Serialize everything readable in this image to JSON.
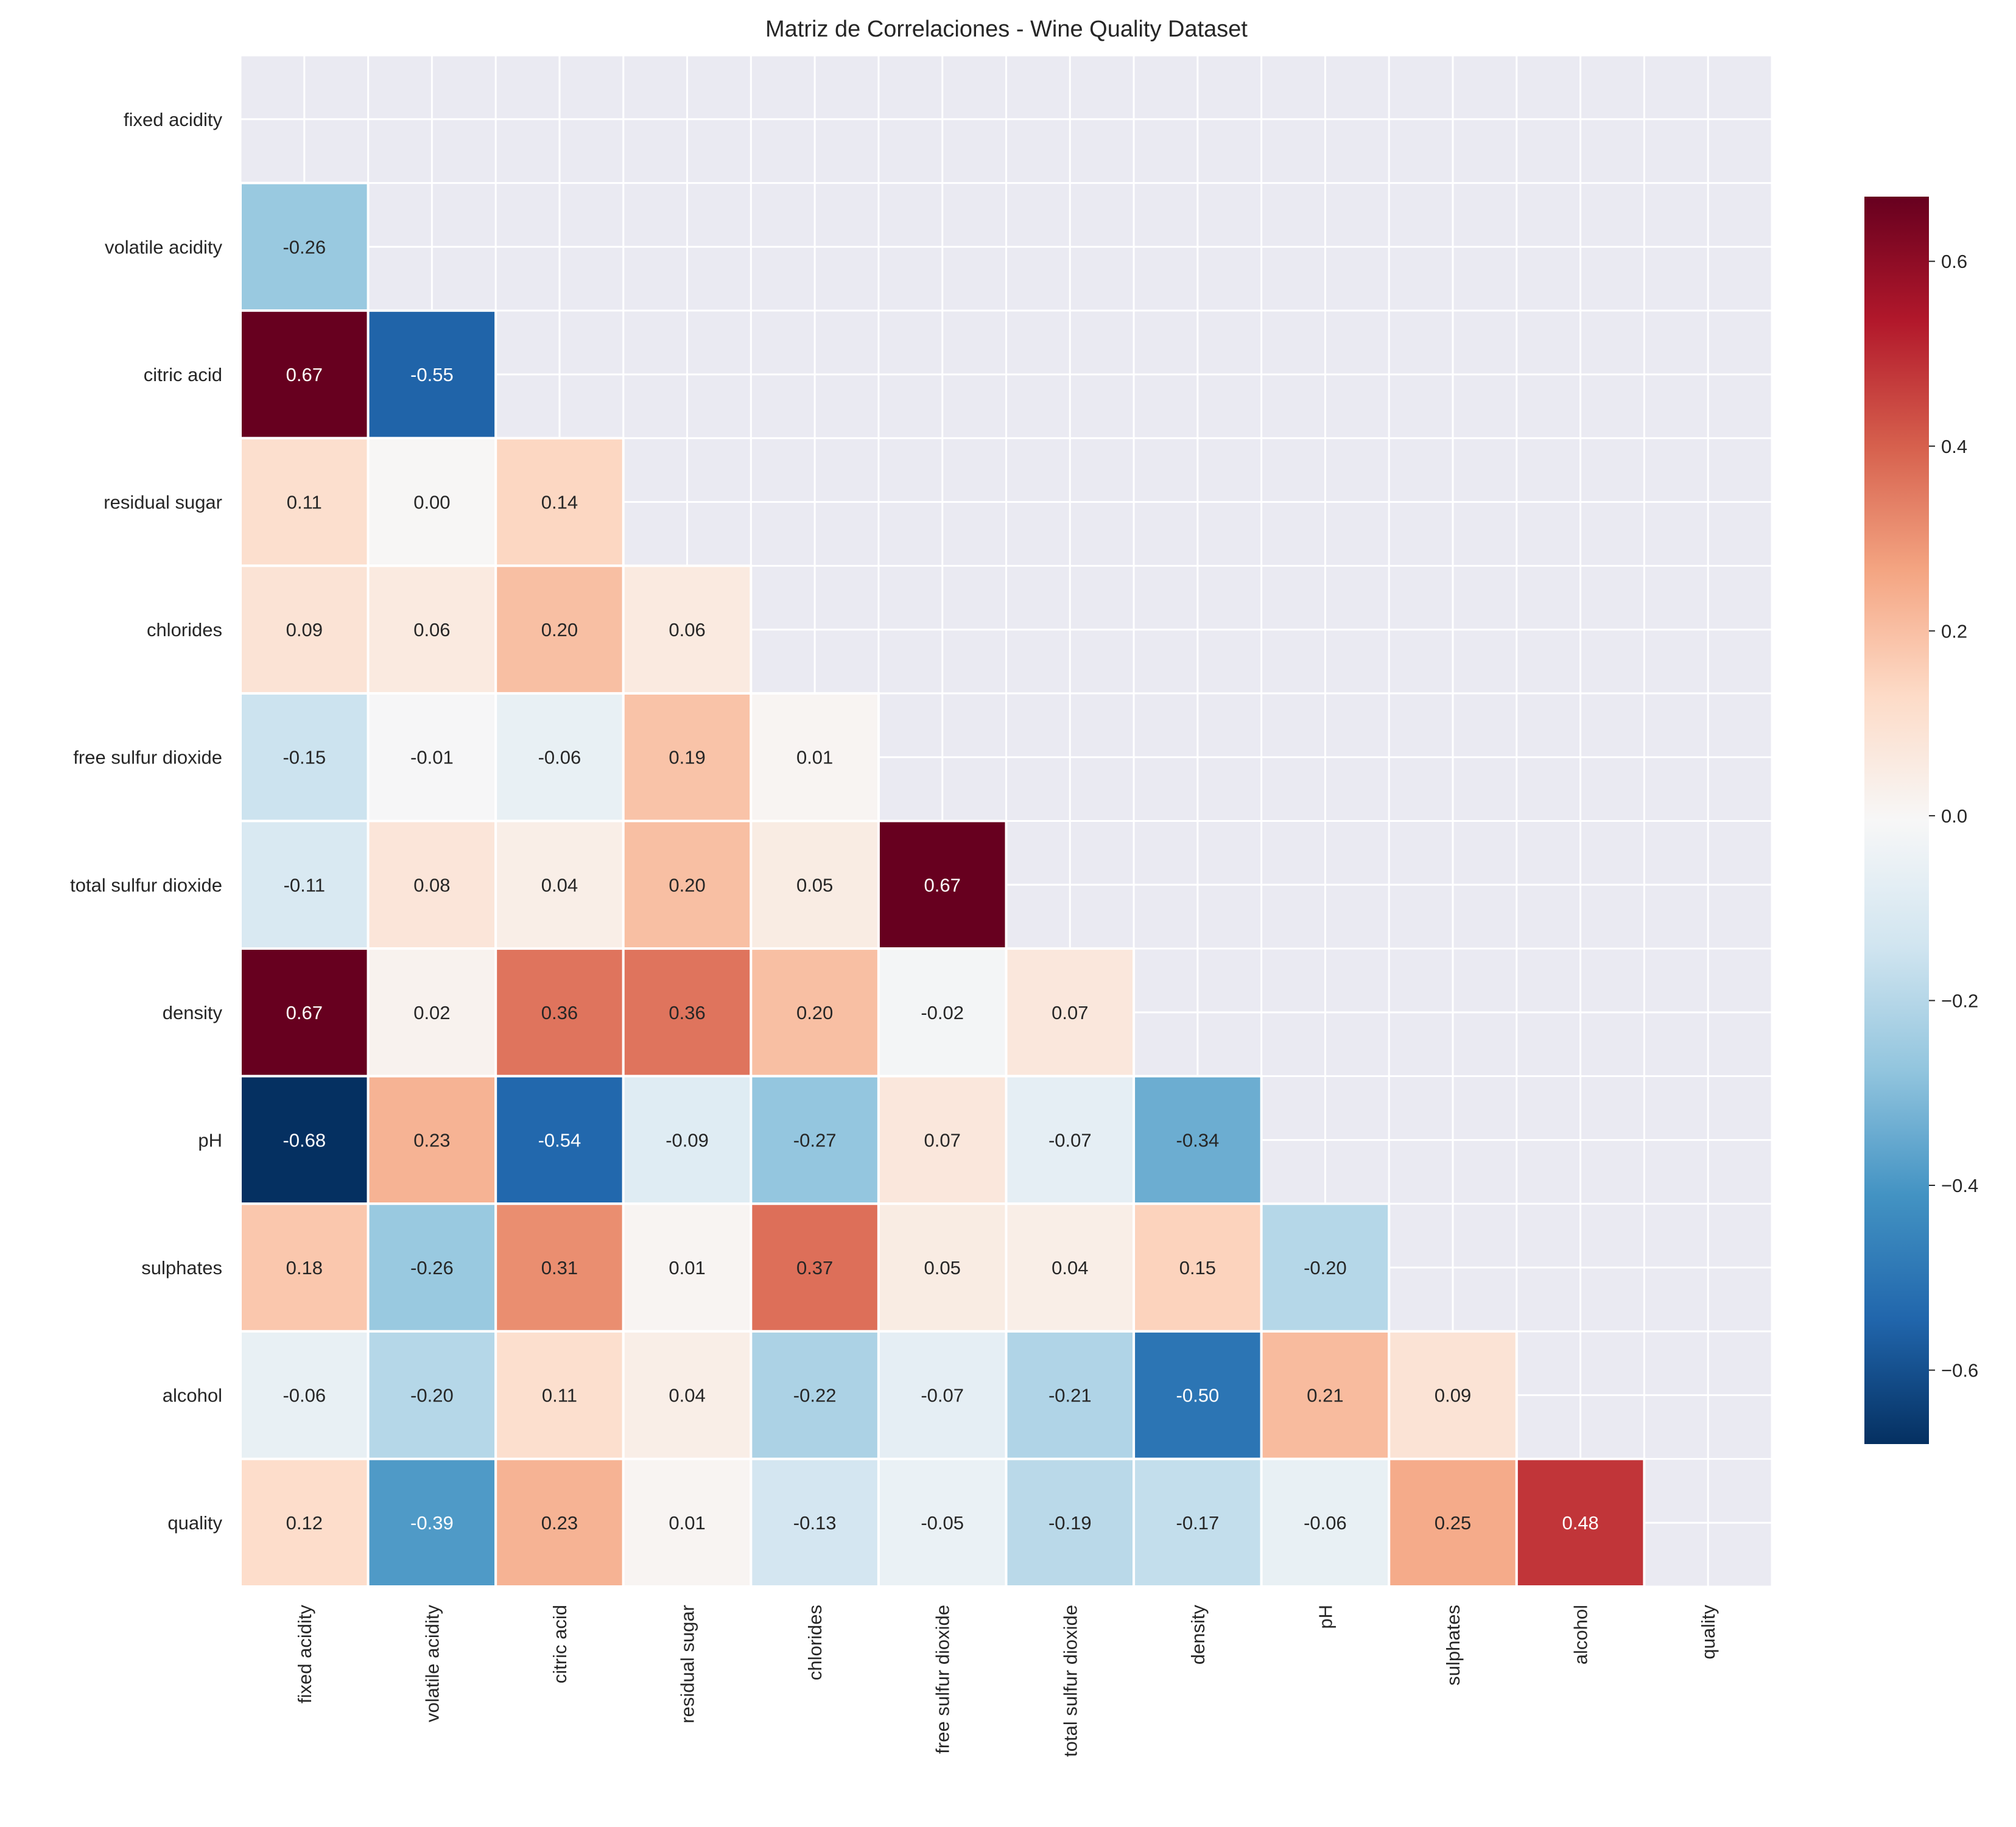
{
  "chart_data": {
    "type": "heatmap",
    "title": "Matriz de Correlaciones - Wine Quality Dataset",
    "variables": [
      "fixed acidity",
      "volatile acidity",
      "citric acid",
      "residual sugar",
      "chlorides",
      "free sulfur dioxide",
      "total sulfur dioxide",
      "density",
      "pH",
      "sulphates",
      "alcohol",
      "quality"
    ],
    "mask": "upper-triangle-including-diagonal",
    "lower_triangle": [
      [],
      [
        -0.26
      ],
      [
        0.67,
        -0.55
      ],
      [
        0.11,
        0.0,
        0.14
      ],
      [
        0.09,
        0.06,
        0.2,
        0.06
      ],
      [
        -0.15,
        -0.01,
        -0.06,
        0.19,
        0.01
      ],
      [
        -0.11,
        0.08,
        0.04,
        0.2,
        0.05,
        0.67
      ],
      [
        0.67,
        0.02,
        0.36,
        0.36,
        0.2,
        -0.02,
        0.07
      ],
      [
        -0.68,
        0.23,
        -0.54,
        -0.09,
        -0.27,
        0.07,
        -0.07,
        -0.34
      ],
      [
        0.18,
        -0.26,
        0.31,
        0.01,
        0.37,
        0.05,
        0.04,
        0.15,
        -0.2
      ],
      [
        -0.06,
        -0.2,
        0.11,
        0.04,
        -0.22,
        -0.07,
        -0.21,
        -0.5,
        0.21,
        0.09
      ],
      [
        0.12,
        -0.39,
        0.23,
        0.01,
        -0.13,
        -0.05,
        -0.19,
        -0.17,
        -0.06,
        0.25,
        0.48
      ]
    ],
    "colormap": "RdBu_r",
    "colorbar": {
      "vmin": -0.68,
      "vmax": 0.67,
      "ticks": [
        -0.6,
        -0.4,
        -0.2,
        0.0,
        0.2,
        0.4,
        0.6
      ],
      "tick_labels": [
        "−0.6",
        "−0.4",
        "−0.2",
        "0.0",
        "0.2",
        "0.4",
        "0.6"
      ]
    },
    "colors": {
      "background": "#EAEAF2",
      "grid": "#FFFFFF"
    }
  }
}
